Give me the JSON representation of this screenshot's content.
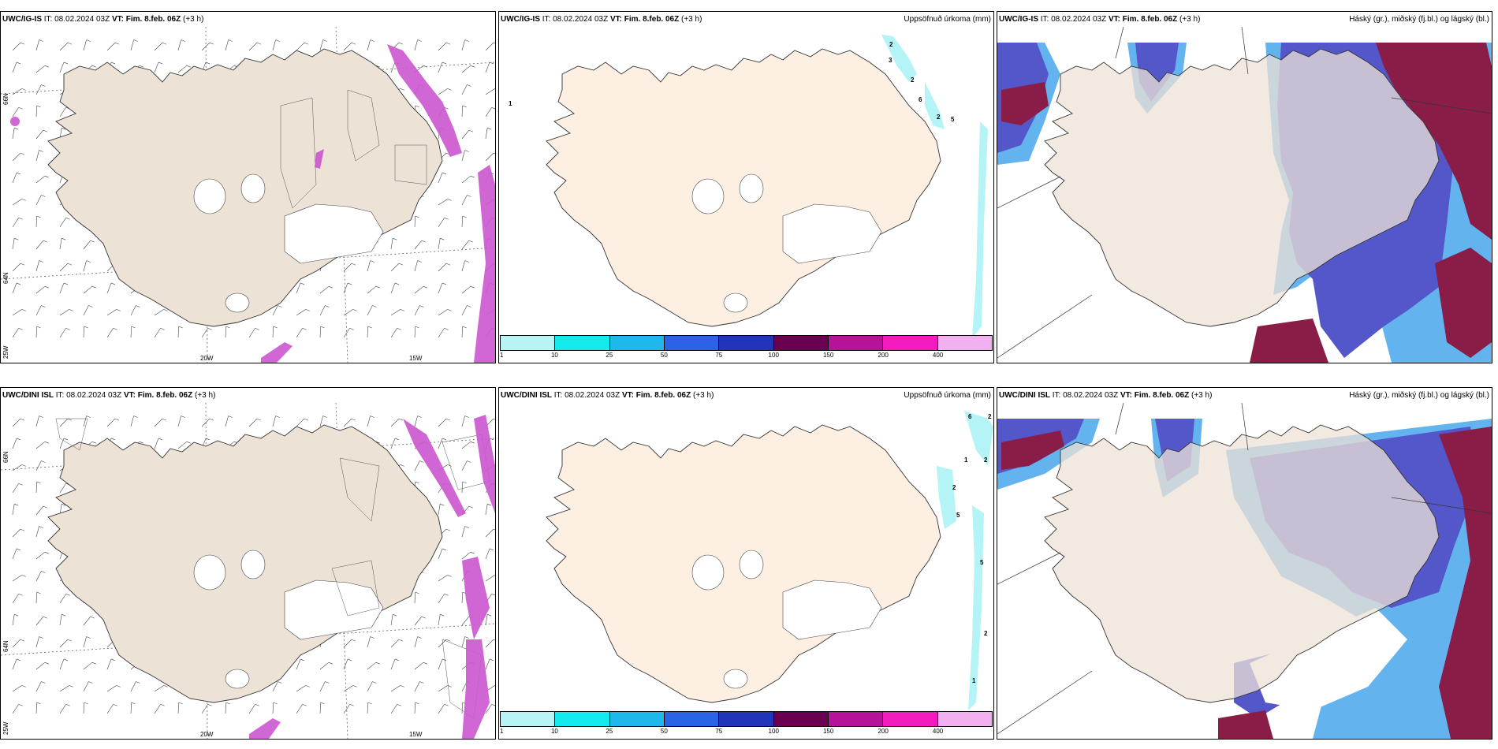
{
  "rows": [
    {
      "model": "UWC/IG-IS",
      "it_label": "IT:",
      "it_value": "08.02.2024 03Z",
      "vt_label": "VT:",
      "vt_value": "Fim. 8.feb. 06Z",
      "lead": "(+3 h)",
      "precip_numbers": [
        "1",
        "2",
        "3",
        "2",
        "6",
        "2",
        "5"
      ]
    },
    {
      "model": "UWC/DINI ISL",
      "it_label": "IT:",
      "it_value": "08.02.2024 03Z",
      "vt_label": "VT:",
      "vt_value": "Fim. 8.feb. 06Z",
      "lead": "(+3 h)",
      "precip_numbers": [
        "6",
        "2",
        "1",
        "2",
        "2",
        "5",
        "5",
        "2",
        "1"
      ]
    }
  ],
  "precip_title": "Uppsöfnuð úrkoma (mm)",
  "cloud_title": "Háský (gr.), miðský (fj.bl.) og lágský (bl.)",
  "lon_labels": [
    "20W",
    "15W"
  ],
  "lat_labels": [
    "66N",
    "64N",
    "25W"
  ],
  "colorbar": {
    "labels": [
      "1",
      "10",
      "25",
      "50",
      "75",
      "100",
      "150",
      "200",
      "400"
    ],
    "colors": [
      "#b8f4f6",
      "#14eaee",
      "#1fb8ea",
      "#2a63e6",
      "#2234b8",
      "#6a0050",
      "#b5139a",
      "#f21bbd",
      "#f3b0f1"
    ]
  },
  "map_colors": {
    "land": "#ede2d6",
    "land_precip": "#fdf0e3",
    "snow": "#ffffff",
    "precip_blue": "#b4f3f6",
    "wind_magenta": "#cc55d0",
    "cloud_high": "#8a1d47",
    "cloud_mid": "#5457c9",
    "cloud_low": "#63b3ee"
  }
}
